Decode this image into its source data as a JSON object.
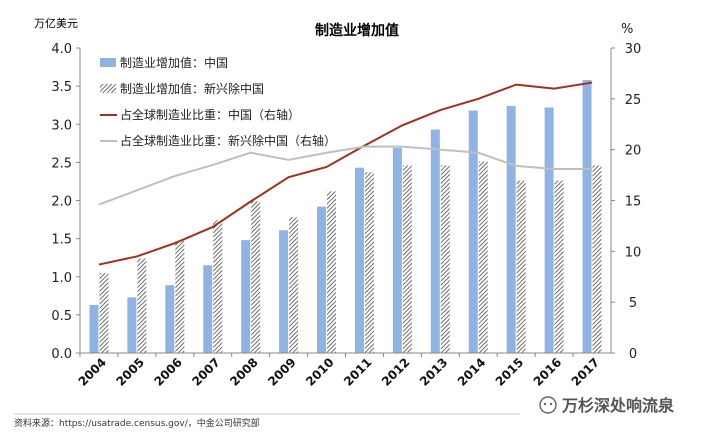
{
  "chart_data": {
    "type": "bar",
    "title": "制造业增加值",
    "left_unit": "万亿美元",
    "right_unit": "%",
    "categories": [
      "2004",
      "2005",
      "2006",
      "2007",
      "2008",
      "2009",
      "2010",
      "2011",
      "2012",
      "2013",
      "2014",
      "2015",
      "2016",
      "2017"
    ],
    "ylim": [
      0,
      4.0
    ],
    "yticks": [
      "0.0",
      "0.5",
      "1.0",
      "1.5",
      "2.0",
      "2.5",
      "3.0",
      "3.5",
      "4.0"
    ],
    "y2lim": [
      0,
      30
    ],
    "y2ticks": [
      "0",
      "5",
      "10",
      "15",
      "20",
      "25",
      "30"
    ],
    "series": [
      {
        "name": "制造业增加值：中国",
        "type": "bar",
        "axis": "left",
        "color": "#8fb4e3",
        "values": [
          0.63,
          0.73,
          0.89,
          1.15,
          1.48,
          1.61,
          1.92,
          2.43,
          2.69,
          2.93,
          3.18,
          3.24,
          3.22,
          3.58
        ]
      },
      {
        "name": "制造业增加值：新兴除中国",
        "type": "bar",
        "axis": "left",
        "pattern": "hatch",
        "values": [
          1.05,
          1.24,
          1.47,
          1.74,
          1.99,
          1.78,
          2.12,
          2.37,
          2.46,
          2.46,
          2.51,
          2.26,
          2.26,
          2.46
        ]
      },
      {
        "name": "占全球制造业比重：中国（右轴）",
        "type": "line",
        "axis": "right",
        "color": "#a0311e",
        "values": [
          8.7,
          9.5,
          10.8,
          12.4,
          14.9,
          17.3,
          18.3,
          20.4,
          22.4,
          23.9,
          25.0,
          26.4,
          26.0,
          26.6
        ]
      },
      {
        "name": "占全球制造业比重：新兴除中国（右轴）",
        "type": "line",
        "axis": "right",
        "color": "#bfbfbf",
        "values": [
          14.6,
          16.0,
          17.4,
          18.5,
          19.7,
          19.0,
          19.7,
          20.3,
          20.3,
          20.0,
          19.7,
          18.4,
          18.1,
          18.1
        ]
      }
    ]
  },
  "footer": {
    "source": "资料来源：https://usatrade.census.gov/，中金公司研究部",
    "watermark": "万杉深处响流泉"
  },
  "colors": {
    "china_bar": "#8fb4e3",
    "china_line": "#a0311e",
    "em_line": "#bfbfbf",
    "hatch": "#555555"
  }
}
